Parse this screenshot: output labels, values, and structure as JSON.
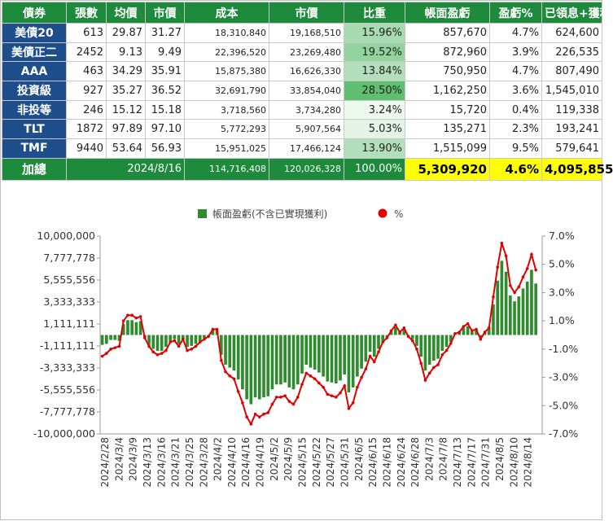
{
  "table": {
    "headers": [
      "債券",
      "張數",
      "均價",
      "市價",
      "成本",
      "市價",
      "比重",
      "帳面盈虧",
      "盈虧%",
      "已領息+獲利"
    ],
    "rows": [
      {
        "name": "美債20",
        "qty": "613",
        "avg": "29.87",
        "price": "31.27",
        "cost": "18,310,840",
        "mv": "19,168,510",
        "weight": "15.96%",
        "weight_pct": 15.96,
        "pl": "857,670",
        "plpct": "4.7%",
        "income": "624,600"
      },
      {
        "name": "美債正二",
        "qty": "2452",
        "avg": "9.13",
        "price": "9.49",
        "cost": "22,396,520",
        "mv": "23,269,480",
        "weight": "19.52%",
        "weight_pct": 19.52,
        "pl": "872,960",
        "plpct": "3.9%",
        "income": "226,535"
      },
      {
        "name": "AAA",
        "qty": "463",
        "avg": "34.29",
        "price": "35.91",
        "cost": "15,875,380",
        "mv": "16,626,330",
        "weight": "13.84%",
        "weight_pct": 13.84,
        "pl": "750,950",
        "plpct": "4.7%",
        "income": "807,490"
      },
      {
        "name": "投資級",
        "qty": "927",
        "avg": "35.27",
        "price": "36.52",
        "cost": "32,691,790",
        "mv": "33,854,040",
        "weight": "28.50%",
        "weight_pct": 28.5,
        "pl": "1,162,250",
        "plpct": "3.6%",
        "income": "1,545,010"
      },
      {
        "name": "非投等",
        "qty": "246",
        "avg": "15.12",
        "price": "15.18",
        "cost": "3,718,560",
        "mv": "3,734,280",
        "weight": "3.24%",
        "weight_pct": 3.24,
        "pl": "15,720",
        "plpct": "0.4%",
        "income": "119,338"
      },
      {
        "name": "TLT",
        "qty": "1872",
        "avg": "97.89",
        "price": "97.10",
        "cost": "5,772,293",
        "mv": "5,907,564",
        "weight": "5.03%",
        "weight_pct": 5.03,
        "pl": "135,271",
        "plpct": "2.3%",
        "income": "193,241"
      },
      {
        "name": "TMF",
        "qty": "9440",
        "avg": "53.64",
        "price": "56.93",
        "cost": "15,951,025",
        "mv": "17,466,124",
        "weight": "13.90%",
        "weight_pct": 13.9,
        "pl": "1,515,099",
        "plpct": "9.5%",
        "income": "579,641"
      }
    ],
    "total": {
      "label": "加總",
      "date": "2024/8/16",
      "cost": "114,716,408",
      "mv": "120,026,328",
      "weight": "100.00%",
      "pl": "5,309,920",
      "plpct": "4.6%",
      "income": "4,095,855"
    }
  },
  "colors": {
    "header_green": "#1e8a3c",
    "name_blue": "#1f4e8c",
    "highlight_yellow": "#ffff00",
    "bar_green": "#2e8b2e",
    "line_red": "#e00000"
  },
  "chart_data": {
    "type": "bar+line",
    "legend": [
      "帳面盈虧(不含已實現獲利)",
      "%"
    ],
    "legend_position": "top",
    "left_axis": {
      "min": -10000000,
      "max": 10000000,
      "ticks": [
        "10,000,000",
        "7,777,778",
        "5,555,556",
        "3,333,333",
        "1,111,111",
        "-1,111,111",
        "-3,333,333",
        "-5,555,556",
        "-7,777,778",
        "-10,000,000"
      ]
    },
    "right_axis": {
      "min": -7,
      "max": 7,
      "ticks": [
        "7.0%",
        "5.0%",
        "3.0%",
        "1.0%",
        "-1.0%",
        "-3.0%",
        "-5.0%",
        "-7.0%"
      ]
    },
    "x_tick_labels": [
      "2024/2/28",
      "2024/3/4",
      "2024/3/9",
      "2024/3/13",
      "2024/3/16",
      "2024/3/21",
      "2024/3/25",
      "2024/3/28",
      "2024/4/2",
      "2024/4/10",
      "2024/4/16",
      "2024/4/19",
      "2024/5/2",
      "2024/5/9",
      "2024/5/15",
      "2024/5/22",
      "2024/5/27",
      "2024/5/31",
      "2024/6/5",
      "2024/6/15",
      "2024/6/18",
      "2024/6/24",
      "2024/6/28",
      "2024/7/3",
      "2024/7/8",
      "2024/7/13",
      "2024/7/17",
      "2024/7/31",
      "2024/8/5",
      "2024/8/10",
      "2024/8/14"
    ],
    "series": [
      {
        "name": "帳面盈虧(不含已實現獲利)",
        "type": "bar",
        "axis": "left",
        "values": [
          -1000000,
          -900000,
          -500000,
          -500000,
          -600000,
          1100000,
          1500000,
          1500000,
          1300000,
          1400000,
          -200000,
          -1000000,
          -1400000,
          -1600000,
          -1600000,
          -1200000,
          -600000,
          -400000,
          -900000,
          -400000,
          -1200000,
          -1100000,
          -900000,
          -600000,
          -300000,
          -200000,
          500000,
          500000,
          -2000000,
          -3000000,
          -3300000,
          -3600000,
          -4500000,
          -5500000,
          -6500000,
          -7000000,
          -6300000,
          -6500000,
          -6300000,
          -6200000,
          -5500000,
          -5000000,
          -5000000,
          -4800000,
          -5300000,
          -5500000,
          -5000000,
          -3900000,
          -3000000,
          -3300000,
          -3500000,
          -3800000,
          -4200000,
          -4700000,
          -4800000,
          -4900000,
          -4600000,
          -4000000,
          -5800000,
          -5300000,
          -4200000,
          -3400000,
          -2700000,
          -1700000,
          -2200000,
          -1400000,
          -600000,
          -200000,
          300000,
          800000,
          200000,
          600000,
          -100000,
          -400000,
          -1100000,
          -2200000,
          -3600000,
          -3000000,
          -2600000,
          -2400000,
          -1600000,
          -1200000,
          -700000,
          100000,
          200000,
          700000,
          900000,
          300000,
          500000,
          -300000,
          200000,
          600000,
          3100000,
          5500000,
          7500000,
          6400000,
          4000000,
          3400000,
          3900000,
          4700000,
          5400000,
          6600000,
          5200000
        ]
      },
      {
        "name": "%",
        "type": "line",
        "axis": "right",
        "values": [
          -1.5,
          -1.3,
          -1.0,
          -0.9,
          -0.8,
          1.0,
          1.4,
          1.4,
          1.2,
          1.3,
          -0.2,
          -0.8,
          -1.2,
          -1.4,
          -1.3,
          -1.1,
          -0.5,
          -0.4,
          -0.8,
          -0.3,
          -1.1,
          -1.0,
          -0.8,
          -0.5,
          -0.3,
          -0.1,
          0.4,
          0.4,
          -1.8,
          -2.6,
          -2.9,
          -3.1,
          -4.0,
          -4.8,
          -5.8,
          -6.3,
          -5.6,
          -5.8,
          -5.6,
          -5.5,
          -4.9,
          -4.4,
          -4.4,
          -4.3,
          -4.7,
          -4.9,
          -4.4,
          -3.5,
          -2.7,
          -2.9,
          -3.1,
          -3.4,
          -3.7,
          -4.2,
          -4.3,
          -4.4,
          -4.1,
          -3.6,
          -5.2,
          -4.8,
          -3.7,
          -3.0,
          -2.4,
          -1.5,
          -1.9,
          -1.2,
          -0.5,
          -0.2,
          0.3,
          0.7,
          0.2,
          0.5,
          -0.1,
          -0.4,
          -1.0,
          -2.0,
          -3.2,
          -2.7,
          -2.3,
          -2.1,
          -1.4,
          -1.1,
          -0.6,
          0.1,
          0.2,
          0.6,
          0.8,
          0.3,
          0.4,
          -0.3,
          0.2,
          0.5,
          2.7,
          4.8,
          6.5,
          5.6,
          3.5,
          3.0,
          3.4,
          4.1,
          4.7,
          5.7,
          4.6
        ]
      }
    ],
    "x_count": 104,
    "grid": false
  }
}
